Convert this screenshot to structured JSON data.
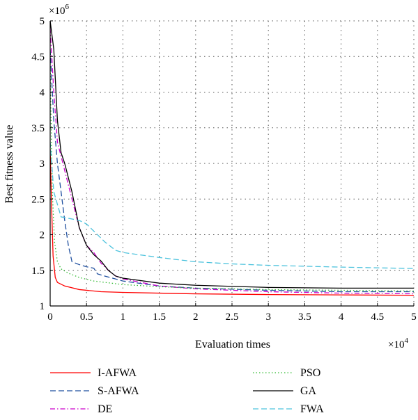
{
  "chart_data": {
    "type": "line",
    "xlabel": "Evaluation times",
    "ylabel": "Best fitness value",
    "x_exponent_label": "×10",
    "x_exponent": "4",
    "y_exponent_label": "×10",
    "y_exponent": "6",
    "xlim": [
      0,
      5
    ],
    "ylim": [
      1,
      5
    ],
    "x_ticks": [
      "0",
      "0.5",
      "1",
      "1.5",
      "2",
      "2.5",
      "3",
      "3.5",
      "4",
      "4.5",
      "5"
    ],
    "y_ticks": [
      "1",
      "1.5",
      "2",
      "2.5",
      "3",
      "3.5",
      "4",
      "4.5",
      "5"
    ],
    "grid": true,
    "legend_placement": "bottom",
    "series": [
      {
        "name": "I-AFWA",
        "color": "#ff0000",
        "dash": "solid",
        "points": [
          [
            0,
            3.2
          ],
          [
            0.02,
            2.4
          ],
          [
            0.04,
            1.7
          ],
          [
            0.07,
            1.4
          ],
          [
            0.1,
            1.33
          ],
          [
            0.2,
            1.28
          ],
          [
            0.4,
            1.23
          ],
          [
            0.7,
            1.2
          ],
          [
            1,
            1.19
          ],
          [
            1.5,
            1.18
          ],
          [
            2,
            1.17
          ],
          [
            3,
            1.16
          ],
          [
            4,
            1.155
          ],
          [
            5,
            1.15
          ]
        ]
      },
      {
        "name": "S-AFWA",
        "color": "#1f4f9f",
        "dash": "long-dash",
        "points": [
          [
            0,
            4.6
          ],
          [
            0.05,
            3.6
          ],
          [
            0.1,
            3.0
          ],
          [
            0.15,
            2.6
          ],
          [
            0.2,
            2.2
          ],
          [
            0.25,
            1.85
          ],
          [
            0.3,
            1.62
          ],
          [
            0.4,
            1.58
          ],
          [
            0.5,
            1.55
          ],
          [
            0.6,
            1.53
          ],
          [
            0.65,
            1.45
          ],
          [
            0.75,
            1.42
          ],
          [
            1,
            1.35
          ],
          [
            1.5,
            1.28
          ],
          [
            2,
            1.25
          ],
          [
            3,
            1.22
          ],
          [
            4,
            1.2
          ],
          [
            5,
            1.2
          ]
        ]
      },
      {
        "name": "DE",
        "color": "#cc00cc",
        "dash": "dash-dot",
        "points": [
          [
            0,
            4.9
          ],
          [
            0.05,
            4.0
          ],
          [
            0.1,
            3.3
          ],
          [
            0.2,
            2.9
          ],
          [
            0.3,
            2.5
          ],
          [
            0.4,
            2.1
          ],
          [
            0.5,
            1.85
          ],
          [
            0.6,
            1.75
          ],
          [
            0.7,
            1.6
          ],
          [
            0.8,
            1.5
          ],
          [
            0.9,
            1.42
          ],
          [
            1,
            1.38
          ],
          [
            1.5,
            1.28
          ],
          [
            2,
            1.24
          ],
          [
            3,
            1.2
          ],
          [
            4,
            1.18
          ],
          [
            5,
            1.17
          ]
        ]
      },
      {
        "name": "PSO",
        "color": "#33bb33",
        "dash": "dotted",
        "points": [
          [
            0,
            4.4
          ],
          [
            0.03,
            2.6
          ],
          [
            0.06,
            1.9
          ],
          [
            0.1,
            1.62
          ],
          [
            0.15,
            1.52
          ],
          [
            0.25,
            1.46
          ],
          [
            0.4,
            1.4
          ],
          [
            0.6,
            1.35
          ],
          [
            1,
            1.3
          ],
          [
            1.5,
            1.27
          ],
          [
            2,
            1.25
          ],
          [
            3,
            1.23
          ],
          [
            4,
            1.22
          ],
          [
            5,
            1.21
          ]
        ]
      },
      {
        "name": "GA",
        "color": "#000000",
        "dash": "solid",
        "points": [
          [
            0,
            5.0
          ],
          [
            0.05,
            4.6
          ],
          [
            0.1,
            3.6
          ],
          [
            0.15,
            3.15
          ],
          [
            0.2,
            3.0
          ],
          [
            0.3,
            2.6
          ],
          [
            0.4,
            2.1
          ],
          [
            0.5,
            1.85
          ],
          [
            0.6,
            1.72
          ],
          [
            0.7,
            1.63
          ],
          [
            0.8,
            1.5
          ],
          [
            0.9,
            1.42
          ],
          [
            1,
            1.39
          ],
          [
            1.5,
            1.32
          ],
          [
            2,
            1.29
          ],
          [
            3,
            1.26
          ],
          [
            4,
            1.25
          ],
          [
            5,
            1.25
          ]
        ]
      },
      {
        "name": "FWA",
        "color": "#4ec3dd",
        "dash": "long-dash",
        "points": [
          [
            0,
            3.3
          ],
          [
            0.05,
            2.6
          ],
          [
            0.15,
            2.25
          ],
          [
            0.3,
            2.22
          ],
          [
            0.4,
            2.2
          ],
          [
            0.5,
            2.15
          ],
          [
            0.6,
            2.05
          ],
          [
            0.75,
            1.9
          ],
          [
            0.9,
            1.78
          ],
          [
            1,
            1.75
          ],
          [
            1.5,
            1.68
          ],
          [
            2,
            1.62
          ],
          [
            2.5,
            1.59
          ],
          [
            3,
            1.57
          ],
          [
            4,
            1.545
          ],
          [
            5,
            1.525
          ]
        ]
      }
    ]
  }
}
